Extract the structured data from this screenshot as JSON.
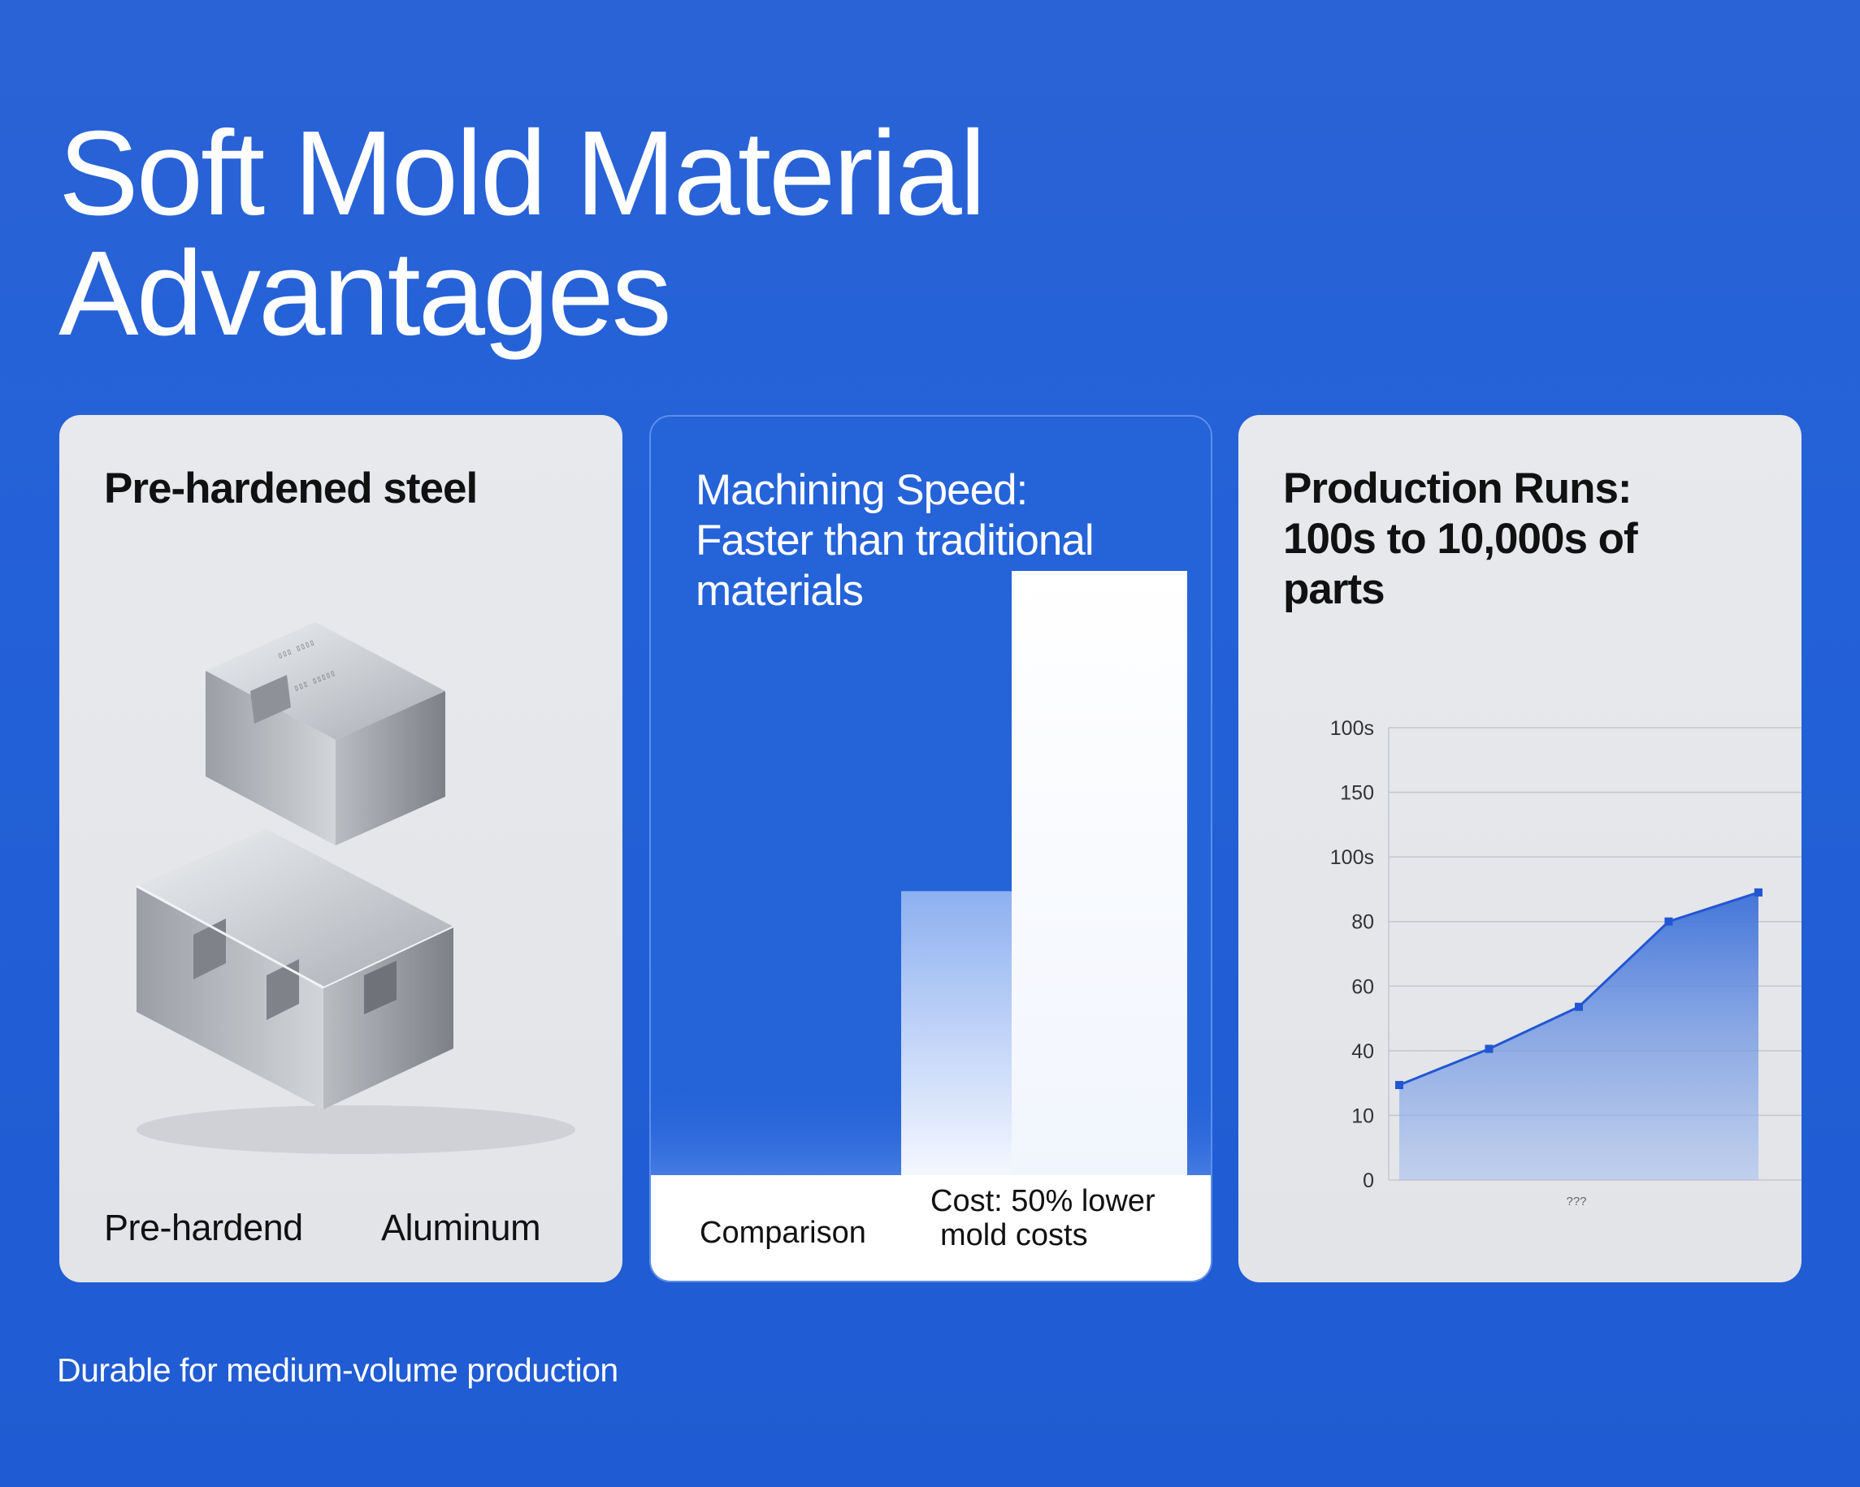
{
  "title": {
    "line1": "Soft Mold Material",
    "line2": "Advantages"
  },
  "cards": [
    {
      "heading": "Pre-hardened steel",
      "labels": [
        "Pre-hardend",
        "Aluminum"
      ]
    },
    {
      "heading_lines": [
        "Machining Speed:",
        "Faster than traditional",
        "materials"
      ],
      "comparison_label": "Comparison",
      "cost_lines": [
        "Cost: 50% lower",
        "mold costs"
      ]
    },
    {
      "heading_lines": [
        "Production Runs:",
        "100s to 10,000s of",
        "parts"
      ]
    }
  ],
  "chart_data": [
    {
      "type": "bar",
      "categories": [
        "",
        ""
      ],
      "values": [
        0.47,
        1.0
      ],
      "title": "",
      "xlabel": "",
      "ylabel": ""
    },
    {
      "type": "area",
      "y_tick_labels": [
        "0",
        "10",
        "40",
        "60",
        "80",
        "100s",
        "150",
        "100s"
      ],
      "x_tick_labels": [
        "???"
      ],
      "series": [
        {
          "values": [
            1.47,
            2.03,
            2.68,
            4.0,
            4.45
          ]
        }
      ],
      "ylim": [
        0,
        7
      ],
      "grid": true,
      "xlabel": "",
      "ylabel": ""
    }
  ],
  "colors": {
    "background": "#2361d8",
    "accent_line": "#2257d1",
    "card_grey": "#e5e7ea"
  },
  "footer": "Durable for medium-volume production"
}
